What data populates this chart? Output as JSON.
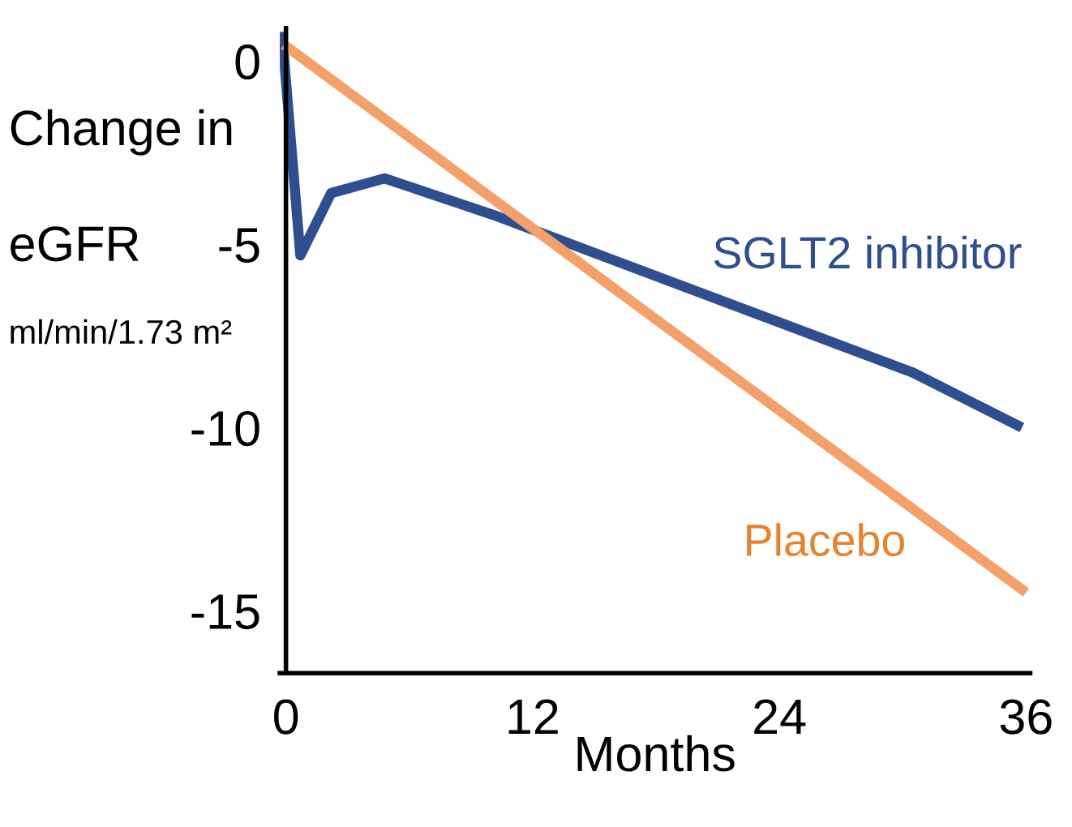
{
  "chart_data": {
    "type": "line",
    "xlabel": "Months",
    "ylabel": "Change in\neGFR\nml/min/1.73 m²",
    "xlim": [
      -0.3,
      36.2
    ],
    "ylim": [
      -16.7,
      0.9
    ],
    "xticks": [
      0,
      12,
      24,
      36
    ],
    "yticks": [
      0,
      -5,
      -10,
      -15
    ],
    "grid": false,
    "legend": false,
    "marker": "none",
    "line_style": "solid",
    "series": [
      {
        "name": "SGLT2 inhibitor",
        "color": "#2f4e8f",
        "x": [
          -0.2,
          0.7,
          2.2,
          4.8,
          10.1,
          30.5,
          35.8
        ],
        "values": [
          0.8,
          -5.3,
          -3.6,
          -3.2,
          -4.2,
          -8.5,
          -10.0
        ]
      },
      {
        "name": "Placebo",
        "color": "#f4a06a",
        "x": [
          -0.1,
          36.0
        ],
        "values": [
          0.45,
          -14.5
        ]
      }
    ]
  }
}
